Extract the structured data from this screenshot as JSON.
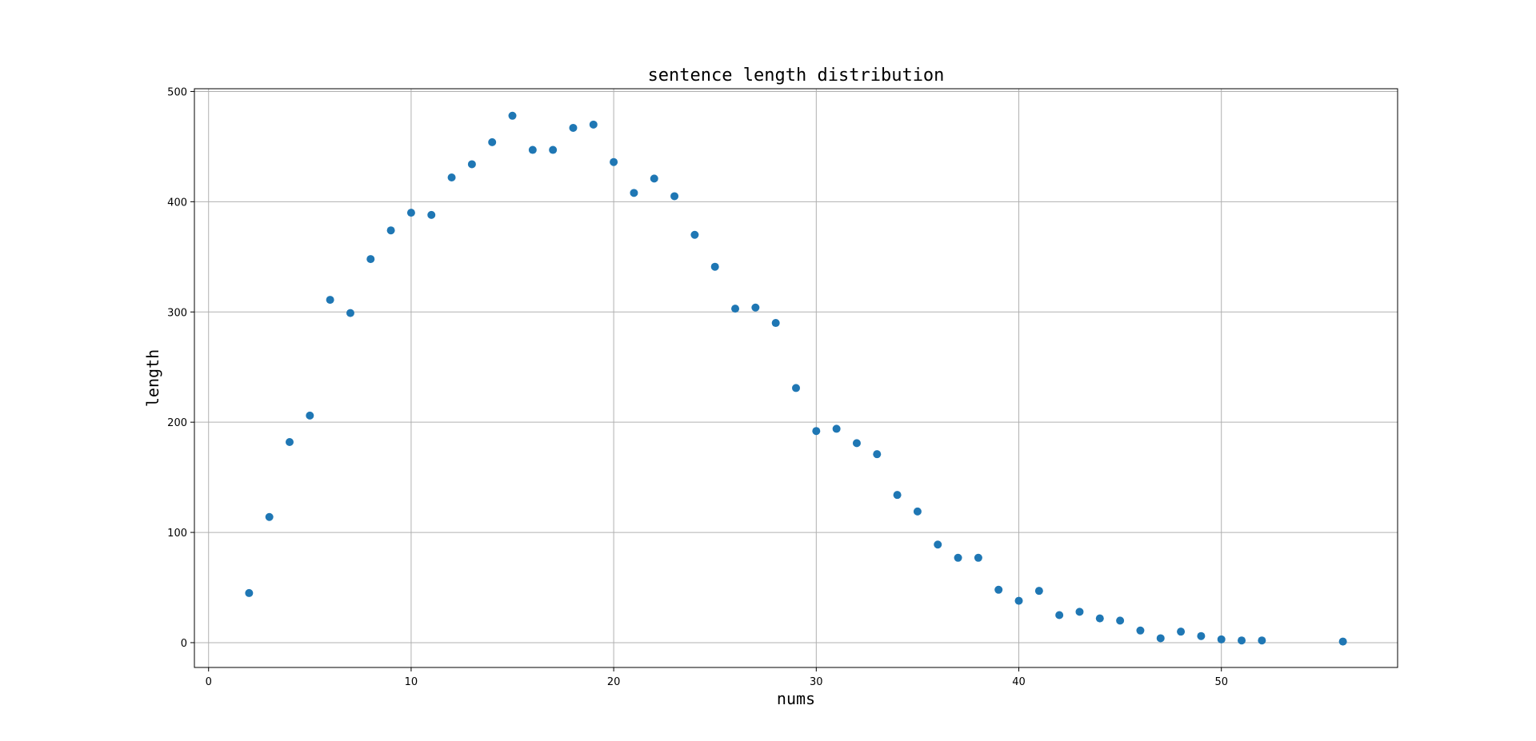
{
  "chart_data": {
    "type": "scatter",
    "title": "sentence length distribution",
    "xlabel": "nums",
    "ylabel": "length",
    "xlim": [
      -0.7,
      58.7
    ],
    "ylim": [
      -22.5,
      502.5
    ],
    "xticks": [
      0,
      10,
      20,
      30,
      40,
      50
    ],
    "yticks": [
      0,
      100,
      200,
      300,
      400,
      500
    ],
    "grid": true,
    "marker_color": "#1f77b4",
    "series": [
      {
        "x": [
          2,
          3,
          4,
          5,
          6,
          7,
          8,
          9,
          10,
          11,
          12,
          13,
          14,
          15,
          16,
          17,
          18,
          19,
          20,
          21,
          22,
          23,
          24,
          25,
          26,
          27,
          28,
          29,
          30,
          31,
          32,
          33,
          34,
          35,
          36,
          37,
          38,
          39,
          40,
          41,
          42,
          43,
          44,
          45,
          46,
          47,
          48,
          49,
          50,
          51,
          52,
          56
        ],
        "y": [
          45,
          114,
          182,
          206,
          311,
          299,
          348,
          374,
          390,
          388,
          422,
          434,
          454,
          478,
          447,
          447,
          467,
          470,
          436,
          408,
          421,
          405,
          370,
          341,
          303,
          304,
          290,
          231,
          192,
          194,
          181,
          171,
          134,
          119,
          89,
          77,
          77,
          48,
          38,
          47,
          25,
          28,
          22,
          20,
          11,
          4,
          10,
          6,
          3,
          2,
          2,
          1
        ]
      }
    ]
  }
}
